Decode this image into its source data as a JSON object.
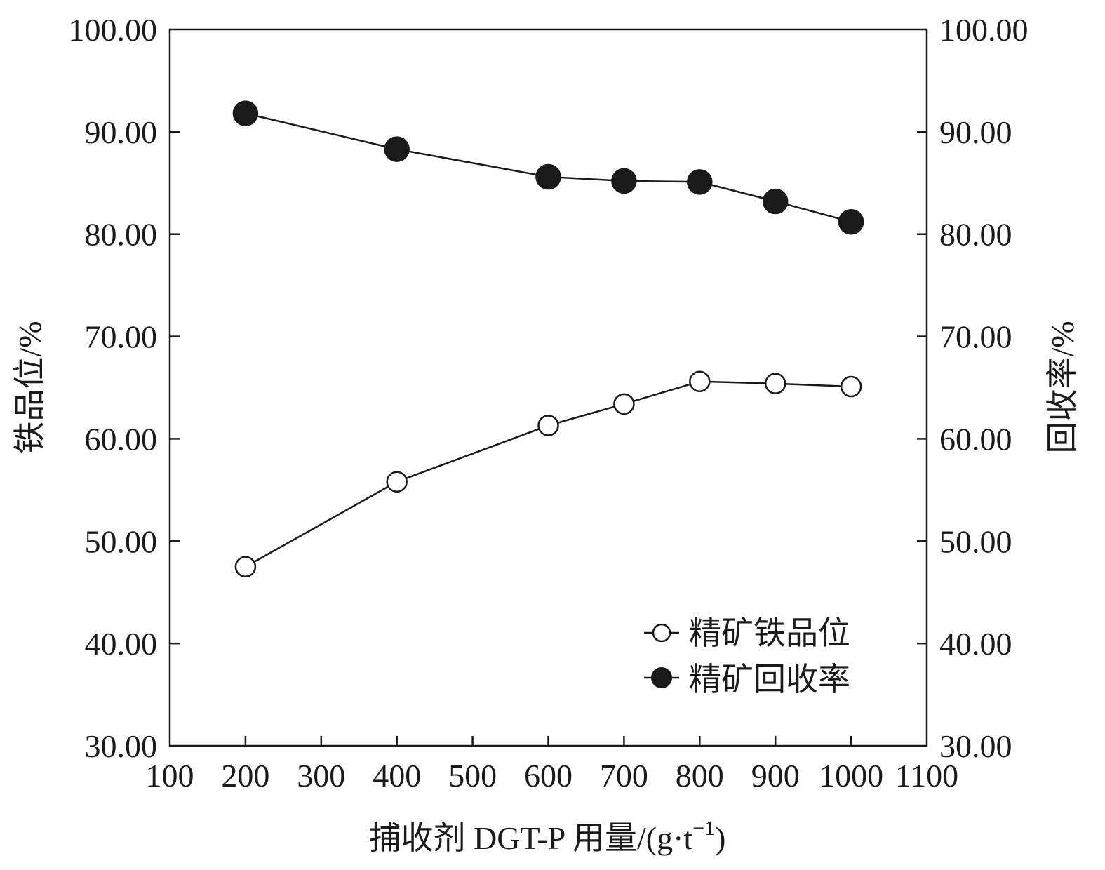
{
  "chart_data": {
    "type": "line",
    "title": "",
    "xlabel": "捕收剂 DGT-P 用量/(g·t",
    "xlabel_sup": "−1",
    "xlabel_end": ")",
    "ylabel_left": "铁品位/%",
    "ylabel_right": "回收率/%",
    "xlim": [
      100,
      1100
    ],
    "ylim_left": [
      30,
      100
    ],
    "ylim_right": [
      30,
      100
    ],
    "x_ticks": [
      "100",
      "200",
      "300",
      "400",
      "500",
      "600",
      "700",
      "800",
      "900",
      "1000",
      "1100"
    ],
    "y_ticks": [
      "30.00",
      "40.00",
      "50.00",
      "60.00",
      "70.00",
      "80.00",
      "90.00",
      "100.00"
    ],
    "grid": false,
    "legend_position": "bottom-right",
    "series": [
      {
        "name": "精矿铁品位",
        "marker": "open-circle",
        "axis": "left",
        "x": [
          200,
          400,
          600,
          700,
          800,
          900,
          1000
        ],
        "values": [
          47.5,
          55.8,
          61.3,
          63.4,
          65.6,
          65.4,
          65.1
        ]
      },
      {
        "name": "精矿回收率",
        "marker": "filled-circle",
        "axis": "right",
        "x": [
          200,
          400,
          600,
          700,
          800,
          900,
          1000
        ],
        "values": [
          91.8,
          88.3,
          85.6,
          85.2,
          85.1,
          83.2,
          81.2
        ]
      }
    ],
    "colors": {
      "line": "#1a1a1a",
      "marker_fill_open": "#ffffff",
      "marker_fill_solid": "#1a1a1a"
    }
  }
}
